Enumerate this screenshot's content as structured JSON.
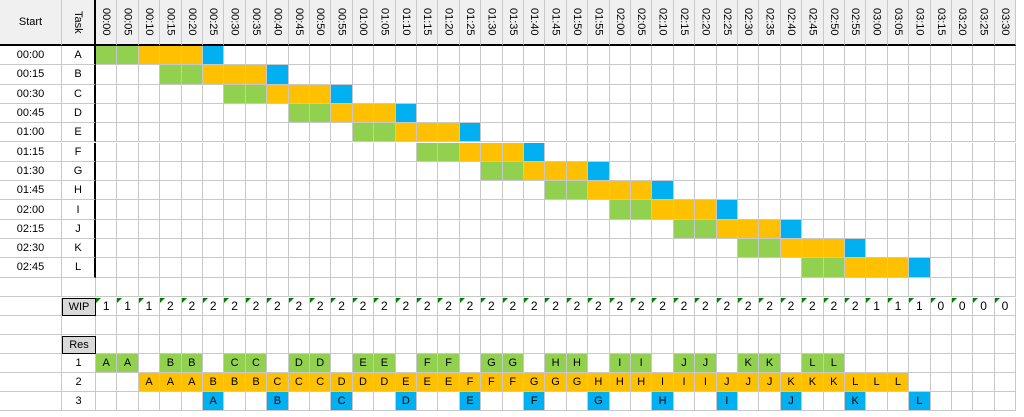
{
  "header": {
    "start_label": "Start",
    "task_label": "Task"
  },
  "times": [
    "00:00",
    "00:05",
    "00:10",
    "00:15",
    "00:20",
    "00:25",
    "00:30",
    "00:35",
    "00:40",
    "00:45",
    "00:50",
    "00:55",
    "01:00",
    "01:05",
    "01:10",
    "01:15",
    "01:20",
    "01:25",
    "01:30",
    "01:35",
    "01:40",
    "01:45",
    "01:50",
    "01:55",
    "02:00",
    "02:05",
    "02:10",
    "02:15",
    "02:20",
    "02:25",
    "02:30",
    "02:35",
    "02:40",
    "02:45",
    "02:50",
    "02:55",
    "03:00",
    "03:05",
    "03:10",
    "03:15",
    "03:20",
    "03:25",
    "03:30"
  ],
  "tasks": [
    {
      "start": "00:00",
      "task": "A"
    },
    {
      "start": "00:15",
      "task": "B"
    },
    {
      "start": "00:30",
      "task": "C"
    },
    {
      "start": "00:45",
      "task": "D"
    },
    {
      "start": "01:00",
      "task": "E"
    },
    {
      "start": "01:15",
      "task": "F"
    },
    {
      "start": "01:30",
      "task": "G"
    },
    {
      "start": "01:45",
      "task": "H"
    },
    {
      "start": "02:00",
      "task": "I"
    },
    {
      "start": "02:15",
      "task": "J"
    },
    {
      "start": "02:30",
      "task": "K"
    },
    {
      "start": "02:45",
      "task": "L"
    }
  ],
  "colors": {
    "green": "#92d050",
    "orange": "#ffc000",
    "blue": "#00b0f0"
  },
  "wip": {
    "label": "WIP",
    "values": [
      "1",
      "1",
      "1",
      "2",
      "2",
      "2",
      "2",
      "2",
      "2",
      "2",
      "2",
      "2",
      "2",
      "2",
      "2",
      "2",
      "2",
      "2",
      "2",
      "2",
      "2",
      "2",
      "2",
      "2",
      "2",
      "2",
      "2",
      "2",
      "2",
      "2",
      "2",
      "2",
      "2",
      "2",
      "2",
      "2",
      "1",
      "1",
      "1",
      "0",
      "0",
      "0",
      "0"
    ]
  },
  "res": {
    "label": "Res",
    "rows": [
      {
        "num": "1",
        "cells": [
          "A",
          "A",
          "",
          "B",
          "B",
          "",
          "C",
          "C",
          "",
          "D",
          "D",
          "",
          "E",
          "E",
          "",
          "F",
          "F",
          "",
          "G",
          "G",
          "",
          "H",
          "H",
          "",
          "I",
          "I",
          "",
          "J",
          "J",
          "",
          "K",
          "K",
          "",
          "L",
          "L",
          "",
          "",
          "",
          "",
          "",
          "",
          "",
          ""
        ]
      },
      {
        "num": "2",
        "cells": [
          "",
          "",
          "A",
          "A",
          "A",
          "B",
          "B",
          "B",
          "C",
          "C",
          "C",
          "D",
          "D",
          "D",
          "E",
          "E",
          "E",
          "F",
          "F",
          "F",
          "G",
          "G",
          "G",
          "H",
          "H",
          "H",
          "I",
          "I",
          "I",
          "J",
          "J",
          "J",
          "K",
          "K",
          "K",
          "L",
          "L",
          "L",
          "",
          "",
          "",
          "",
          ""
        ]
      },
      {
        "num": "3",
        "cells": [
          "",
          "",
          "",
          "",
          "",
          "A",
          "",
          "",
          "B",
          "",
          "",
          "C",
          "",
          "",
          "D",
          "",
          "",
          "E",
          "",
          "",
          "F",
          "",
          "",
          "G",
          "",
          "",
          "H",
          "",
          "",
          "I",
          "",
          "",
          "J",
          "",
          "",
          "K",
          "",
          "",
          "L",
          "",
          "",
          "",
          ""
        ]
      }
    ]
  }
}
